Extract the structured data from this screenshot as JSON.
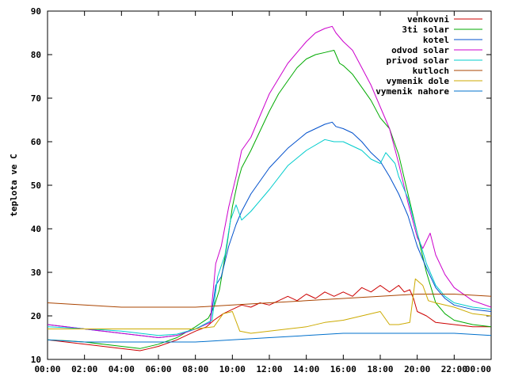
{
  "chart_data": {
    "type": "line",
    "title": "",
    "xlabel": "",
    "ylabel": "teplota ve C",
    "xlim": [
      0,
      24
    ],
    "ylim": [
      10,
      90
    ],
    "x_ticks": [
      0,
      2,
      4,
      6,
      8,
      10,
      12,
      14,
      16,
      18,
      20,
      22,
      24
    ],
    "x_tick_labels": [
      "00:00",
      "02:00",
      "04:00",
      "06:00",
      "08:00",
      "10:00",
      "12:00",
      "14:00",
      "16:00",
      "18:00",
      "20:00",
      "22:00",
      "00:00"
    ],
    "y_ticks": [
      10,
      20,
      30,
      40,
      50,
      60,
      70,
      80,
      90
    ],
    "y_tick_labels": [
      "10",
      "20",
      "30",
      "40",
      "50",
      "60",
      "70",
      "80",
      "90"
    ],
    "grid": false,
    "legend_position": "top-right",
    "series": [
      {
        "name": "venkovni",
        "color": "#cc0000",
        "points": [
          [
            0,
            14.5
          ],
          [
            1,
            14
          ],
          [
            2,
            13.5
          ],
          [
            3,
            13
          ],
          [
            4,
            12.5
          ],
          [
            5,
            12
          ],
          [
            5.5,
            12.5
          ],
          [
            6,
            13
          ],
          [
            7,
            14.5
          ],
          [
            8,
            16.5
          ],
          [
            8.6,
            17.5
          ],
          [
            9,
            19
          ],
          [
            9.5,
            20.5
          ],
          [
            10,
            21.5
          ],
          [
            10.5,
            22.5
          ],
          [
            11,
            22
          ],
          [
            11.5,
            23
          ],
          [
            12,
            22.5
          ],
          [
            12.5,
            23.5
          ],
          [
            13,
            24.5
          ],
          [
            13.5,
            23.5
          ],
          [
            14,
            25
          ],
          [
            14.5,
            24
          ],
          [
            15,
            25.5
          ],
          [
            15.5,
            24.5
          ],
          [
            16,
            25.5
          ],
          [
            16.5,
            24.5
          ],
          [
            17,
            26.5
          ],
          [
            17.5,
            25.5
          ],
          [
            18,
            27
          ],
          [
            18.5,
            25.5
          ],
          [
            19,
            27
          ],
          [
            19.3,
            25.5
          ],
          [
            19.6,
            26
          ],
          [
            19.8,
            24
          ],
          [
            20,
            21
          ],
          [
            20.5,
            20
          ],
          [
            21,
            18.5
          ],
          [
            22,
            18
          ],
          [
            23,
            17.5
          ],
          [
            24,
            17.5
          ]
        ]
      },
      {
        "name": "3ti solar",
        "color": "#00aa00",
        "points": [
          [
            0,
            14.5
          ],
          [
            1,
            14.3
          ],
          [
            2,
            14
          ],
          [
            3,
            13.5
          ],
          [
            4,
            13
          ],
          [
            5,
            12.5
          ],
          [
            6,
            13.5
          ],
          [
            7,
            15
          ],
          [
            8,
            17.5
          ],
          [
            8.7,
            19.5
          ],
          [
            9,
            22
          ],
          [
            9.3,
            26
          ],
          [
            9.7,
            36
          ],
          [
            10,
            45
          ],
          [
            10.3,
            51
          ],
          [
            10.5,
            54
          ],
          [
            11,
            58
          ],
          [
            12,
            67
          ],
          [
            12.5,
            71
          ],
          [
            13,
            74
          ],
          [
            13.5,
            77
          ],
          [
            14,
            79
          ],
          [
            14.5,
            80
          ],
          [
            15,
            80.5
          ],
          [
            15.5,
            81
          ],
          [
            15.8,
            78
          ],
          [
            16,
            77.5
          ],
          [
            16.5,
            75.5
          ],
          [
            17,
            72.5
          ],
          [
            17.5,
            69.5
          ],
          [
            18,
            65.5
          ],
          [
            18.5,
            63
          ],
          [
            19,
            57
          ],
          [
            19.5,
            48
          ],
          [
            20,
            39
          ],
          [
            20.5,
            30
          ],
          [
            21,
            23
          ],
          [
            21.5,
            20.5
          ],
          [
            22,
            19
          ],
          [
            23,
            18
          ],
          [
            24,
            17.5
          ]
        ]
      },
      {
        "name": "kotel",
        "color": "#0050cc",
        "points": [
          [
            0,
            18
          ],
          [
            1,
            17.5
          ],
          [
            2,
            17
          ],
          [
            3,
            16.5
          ],
          [
            4,
            16
          ],
          [
            5,
            15.5
          ],
          [
            6,
            15
          ],
          [
            7,
            15.5
          ],
          [
            8,
            17
          ],
          [
            8.8,
            18.5
          ],
          [
            9.1,
            27
          ],
          [
            9.4,
            29
          ],
          [
            9.8,
            36
          ],
          [
            10.2,
            41
          ],
          [
            10.5,
            44
          ],
          [
            11,
            48
          ],
          [
            12,
            54
          ],
          [
            13,
            58.5
          ],
          [
            14,
            62
          ],
          [
            15,
            64
          ],
          [
            15.4,
            64.5
          ],
          [
            15.6,
            63.5
          ],
          [
            16,
            63
          ],
          [
            16.5,
            62
          ],
          [
            17,
            60
          ],
          [
            17.5,
            57.5
          ],
          [
            18,
            55.5
          ],
          [
            18.5,
            52
          ],
          [
            19,
            48
          ],
          [
            19.5,
            43
          ],
          [
            20,
            36
          ],
          [
            20.5,
            31
          ],
          [
            21,
            26.5
          ],
          [
            21.5,
            24
          ],
          [
            22,
            22.5
          ],
          [
            23,
            21.5
          ],
          [
            24,
            21
          ]
        ]
      },
      {
        "name": "odvod solar",
        "color": "#cc00cc",
        "points": [
          [
            0,
            18
          ],
          [
            1,
            17.5
          ],
          [
            2,
            17
          ],
          [
            3,
            16.5
          ],
          [
            4,
            16
          ],
          [
            5,
            15.5
          ],
          [
            6,
            15
          ],
          [
            7,
            15.5
          ],
          [
            8,
            17
          ],
          [
            8.8,
            18.5
          ],
          [
            9.1,
            32
          ],
          [
            9.4,
            36
          ],
          [
            9.8,
            45
          ],
          [
            10.2,
            52
          ],
          [
            10.5,
            58
          ],
          [
            11,
            61
          ],
          [
            11.5,
            66
          ],
          [
            12,
            71
          ],
          [
            13,
            78
          ],
          [
            14,
            83
          ],
          [
            14.5,
            85
          ],
          [
            15,
            86
          ],
          [
            15.4,
            86.5
          ],
          [
            15.6,
            85
          ],
          [
            16,
            83
          ],
          [
            16.5,
            81
          ],
          [
            17,
            77
          ],
          [
            17.5,
            73
          ],
          [
            18,
            68
          ],
          [
            18.5,
            63
          ],
          [
            19,
            55
          ],
          [
            19.5,
            46
          ],
          [
            20,
            38
          ],
          [
            20.3,
            35.5
          ],
          [
            20.7,
            39
          ],
          [
            21,
            34
          ],
          [
            21.5,
            29.5
          ],
          [
            22,
            26.5
          ],
          [
            23,
            23.5
          ],
          [
            24,
            22
          ]
        ]
      },
      {
        "name": "privod solar",
        "color": "#00cccc",
        "points": [
          [
            0,
            17.5
          ],
          [
            1,
            17.3
          ],
          [
            2,
            17
          ],
          [
            3,
            16.8
          ],
          [
            4,
            16.5
          ],
          [
            5,
            16
          ],
          [
            6,
            15.5
          ],
          [
            7,
            15.8
          ],
          [
            8,
            17
          ],
          [
            8.9,
            19
          ],
          [
            9.2,
            29
          ],
          [
            9.6,
            34
          ],
          [
            9.9,
            42
          ],
          [
            10.2,
            45.5
          ],
          [
            10.5,
            42
          ],
          [
            11,
            44
          ],
          [
            12,
            49
          ],
          [
            13,
            54.5
          ],
          [
            14,
            58
          ],
          [
            15,
            60.5
          ],
          [
            15.5,
            60
          ],
          [
            16,
            60
          ],
          [
            16.5,
            59
          ],
          [
            17,
            58
          ],
          [
            17.5,
            56
          ],
          [
            18,
            55
          ],
          [
            18.3,
            57.5
          ],
          [
            18.8,
            55
          ],
          [
            19,
            52
          ],
          [
            19.5,
            47
          ],
          [
            20,
            39
          ],
          [
            20.5,
            32
          ],
          [
            21,
            27
          ],
          [
            21.5,
            24.5
          ],
          [
            22,
            23
          ],
          [
            23,
            22
          ],
          [
            24,
            21.5
          ]
        ]
      },
      {
        "name": "kutloch",
        "color": "#aa4400",
        "points": [
          [
            0,
            23
          ],
          [
            2,
            22.5
          ],
          [
            4,
            22
          ],
          [
            6,
            22
          ],
          [
            8,
            22
          ],
          [
            10,
            22.5
          ],
          [
            12,
            23
          ],
          [
            14,
            23.5
          ],
          [
            16,
            24
          ],
          [
            18,
            24.5
          ],
          [
            20,
            25
          ],
          [
            22,
            25
          ],
          [
            24,
            24.5
          ]
        ]
      },
      {
        "name": "vymenik dole",
        "color": "#ccaa00",
        "points": [
          [
            0,
            17
          ],
          [
            2,
            17
          ],
          [
            4,
            17
          ],
          [
            6,
            17
          ],
          [
            8,
            17
          ],
          [
            9,
            17.5
          ],
          [
            9.5,
            20.5
          ],
          [
            10,
            21
          ],
          [
            10.4,
            16.5
          ],
          [
            11,
            16
          ],
          [
            12,
            16.5
          ],
          [
            13,
            17
          ],
          [
            14,
            17.5
          ],
          [
            15,
            18.5
          ],
          [
            16,
            19
          ],
          [
            17,
            20
          ],
          [
            18,
            21
          ],
          [
            18.5,
            18
          ],
          [
            19,
            18
          ],
          [
            19.6,
            18.5
          ],
          [
            19.9,
            28.5
          ],
          [
            20.3,
            27
          ],
          [
            20.6,
            23.5
          ],
          [
            21,
            23
          ],
          [
            22,
            22
          ],
          [
            23,
            20.5
          ],
          [
            24,
            20
          ]
        ]
      },
      {
        "name": "vymenik nahore",
        "color": "#0070cc",
        "points": [
          [
            0,
            14.5
          ],
          [
            2,
            14
          ],
          [
            4,
            14
          ],
          [
            6,
            14
          ],
          [
            8,
            14
          ],
          [
            10,
            14.5
          ],
          [
            12,
            15
          ],
          [
            14,
            15.5
          ],
          [
            16,
            16
          ],
          [
            18,
            16
          ],
          [
            20,
            16
          ],
          [
            22,
            16
          ],
          [
            24,
            15.5
          ]
        ]
      }
    ]
  }
}
